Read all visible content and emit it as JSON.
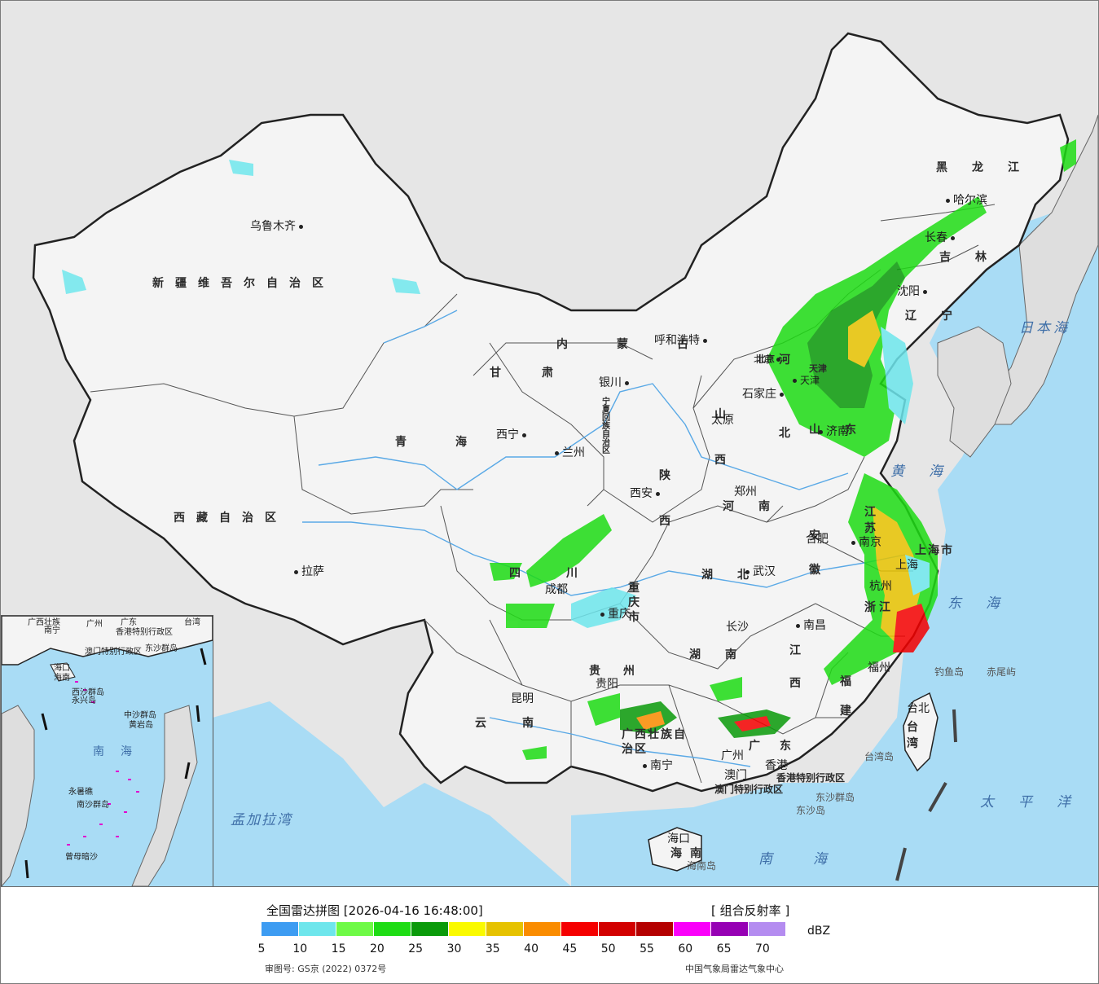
{
  "map": {
    "provinces": [
      {
        "text": "新疆维吾尔自治区"
      },
      {
        "text": "西藏自治区"
      },
      {
        "text": "青海"
      },
      {
        "text": "甘肃"
      },
      {
        "text": "内蒙古"
      },
      {
        "text": "黑龙江"
      },
      {
        "text": "吉林"
      },
      {
        "text": "辽宁"
      },
      {
        "text": "宁夏回族自治区"
      },
      {
        "text": "陕西"
      },
      {
        "text": "山西"
      },
      {
        "text": "河北"
      },
      {
        "text": "山东"
      },
      {
        "text": "河南"
      },
      {
        "text": "四川"
      },
      {
        "text": "重庆市"
      },
      {
        "text": "湖北"
      },
      {
        "text": "安徽"
      },
      {
        "text": "江苏"
      },
      {
        "text": "上海市"
      },
      {
        "text": "浙江"
      },
      {
        "text": "江西"
      },
      {
        "text": "湖南"
      },
      {
        "text": "贵州"
      },
      {
        "text": "云南"
      },
      {
        "text": "广西壮族自治区"
      },
      {
        "text": "广东"
      },
      {
        "text": "福建"
      },
      {
        "text": "台湾"
      },
      {
        "text": "海南"
      },
      {
        "text": "天津"
      },
      {
        "text": "北京"
      },
      {
        "text": "香港特别行政区"
      },
      {
        "text": "澳门特别行政区"
      }
    ],
    "cities": [
      {
        "text": "乌鲁木齐"
      },
      {
        "text": "拉萨"
      },
      {
        "text": "西宁"
      },
      {
        "text": "兰州"
      },
      {
        "text": "银川"
      },
      {
        "text": "呼和浩特"
      },
      {
        "text": "哈尔滨"
      },
      {
        "text": "长春"
      },
      {
        "text": "沈阳"
      },
      {
        "text": "北京"
      },
      {
        "text": "天津"
      },
      {
        "text": "石家庄"
      },
      {
        "text": "太原"
      },
      {
        "text": "济南"
      },
      {
        "text": "郑州"
      },
      {
        "text": "西安"
      },
      {
        "text": "成都"
      },
      {
        "text": "重庆"
      },
      {
        "text": "武汉"
      },
      {
        "text": "合肥"
      },
      {
        "text": "南京"
      },
      {
        "text": "上海"
      },
      {
        "text": "杭州"
      },
      {
        "text": "南昌"
      },
      {
        "text": "长沙"
      },
      {
        "text": "贵阳"
      },
      {
        "text": "昆明"
      },
      {
        "text": "南宁"
      },
      {
        "text": "广州"
      },
      {
        "text": "澳门"
      },
      {
        "text": "香港"
      },
      {
        "text": "福州"
      },
      {
        "text": "台北"
      },
      {
        "text": "海口"
      }
    ],
    "seas": [
      {
        "text": "日本海"
      },
      {
        "text": "黄海"
      },
      {
        "text": "东海"
      },
      {
        "text": "太平洋"
      },
      {
        "text": "南海"
      },
      {
        "text": "孟加拉湾"
      }
    ],
    "islands": [
      {
        "text": "钓鱼岛"
      },
      {
        "text": "赤尾屿"
      },
      {
        "text": "台湾岛"
      },
      {
        "text": "东沙群岛"
      },
      {
        "text": "东沙岛"
      },
      {
        "text": "海南岛"
      }
    ],
    "inset": {
      "labels": [
        {
          "text": "广西壮族"
        },
        {
          "text": "广州"
        },
        {
          "text": "南宁"
        },
        {
          "text": "香港特别行政区"
        },
        {
          "text": "澳门特别行政区"
        },
        {
          "text": "东沙群岛"
        },
        {
          "text": "海口"
        },
        {
          "text": "海南"
        },
        {
          "text": "西沙群岛"
        },
        {
          "text": "永兴岛"
        },
        {
          "text": "中沙群岛"
        },
        {
          "text": "黄岩岛"
        },
        {
          "text": "南海"
        },
        {
          "text": "永暑礁"
        },
        {
          "text": "南沙群岛"
        },
        {
          "text": "曾母暗沙"
        },
        {
          "text": "台湾"
        },
        {
          "text": "广东"
        }
      ]
    },
    "colors": {
      "land": "#f4f4f4",
      "outside": "#e6e6e6",
      "sea": "#a9dcf5",
      "border": "#222222",
      "river": "#5aa9e6"
    }
  },
  "legend": {
    "title": "全国雷达拼图 [2026-04-16 16:48:00]",
    "product": "[ 组合反射率 ]",
    "unit": "dBZ",
    "approval": "审图号: GS京 (2022) 0372号",
    "agency": "中国气象局雷达气象中心",
    "scale": [
      {
        "value": "5",
        "color": "#3d9cf2"
      },
      {
        "value": "10",
        "color": "#6ee6ec"
      },
      {
        "value": "15",
        "color": "#6efa46"
      },
      {
        "value": "20",
        "color": "#1edc14"
      },
      {
        "value": "25",
        "color": "#0a9a0a"
      },
      {
        "value": "30",
        "color": "#fafa00"
      },
      {
        "value": "35",
        "color": "#e6c200"
      },
      {
        "value": "40",
        "color": "#fa8c00"
      },
      {
        "value": "45",
        "color": "#f50000"
      },
      {
        "value": "50",
        "color": "#d20000"
      },
      {
        "value": "55",
        "color": "#b40000"
      },
      {
        "value": "60",
        "color": "#fa00fa"
      },
      {
        "value": "65",
        "color": "#9600b4"
      },
      {
        "value": "70",
        "color": "#b48cf0"
      }
    ]
  }
}
